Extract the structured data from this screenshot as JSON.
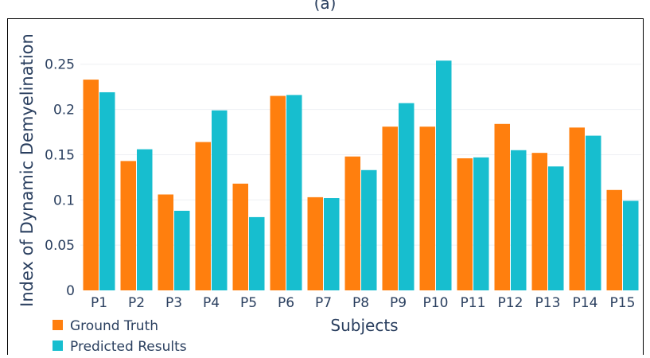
{
  "figure": {
    "title": "(a)"
  },
  "colors": {
    "ground_truth": "#ff7f0e",
    "predicted": "#17becf",
    "grid": "#eef0f4",
    "axis_text": "#2a3f5f"
  },
  "chart_data": {
    "type": "bar",
    "title": "(a)",
    "xlabel": "Subjects",
    "ylabel": "Index of Dynamic Demyelination",
    "ylim": [
      0,
      0.27
    ],
    "yticks": [
      0,
      0.05,
      0.1,
      0.15,
      0.2,
      0.25
    ],
    "ytick_labels": [
      "0",
      "0.05",
      "0.1",
      "0.15",
      "0.2",
      "0.25"
    ],
    "grid": true,
    "legend_position": "bottom-left",
    "categories": [
      "P1",
      "P2",
      "P3",
      "P4",
      "P5",
      "P6",
      "P7",
      "P8",
      "P9",
      "P10",
      "P11",
      "P12",
      "P13",
      "P14",
      "P15"
    ],
    "series": [
      {
        "name": "Ground Truth",
        "color": "#ff7f0e",
        "values": [
          0.233,
          0.143,
          0.106,
          0.164,
          0.118,
          0.215,
          0.103,
          0.148,
          0.181,
          0.181,
          0.146,
          0.184,
          0.152,
          0.18,
          0.111
        ]
      },
      {
        "name": "Predicted Results",
        "color": "#17becf",
        "values": [
          0.219,
          0.156,
          0.088,
          0.199,
          0.081,
          0.216,
          0.102,
          0.133,
          0.207,
          0.254,
          0.147,
          0.155,
          0.137,
          0.171,
          0.099
        ]
      }
    ]
  }
}
